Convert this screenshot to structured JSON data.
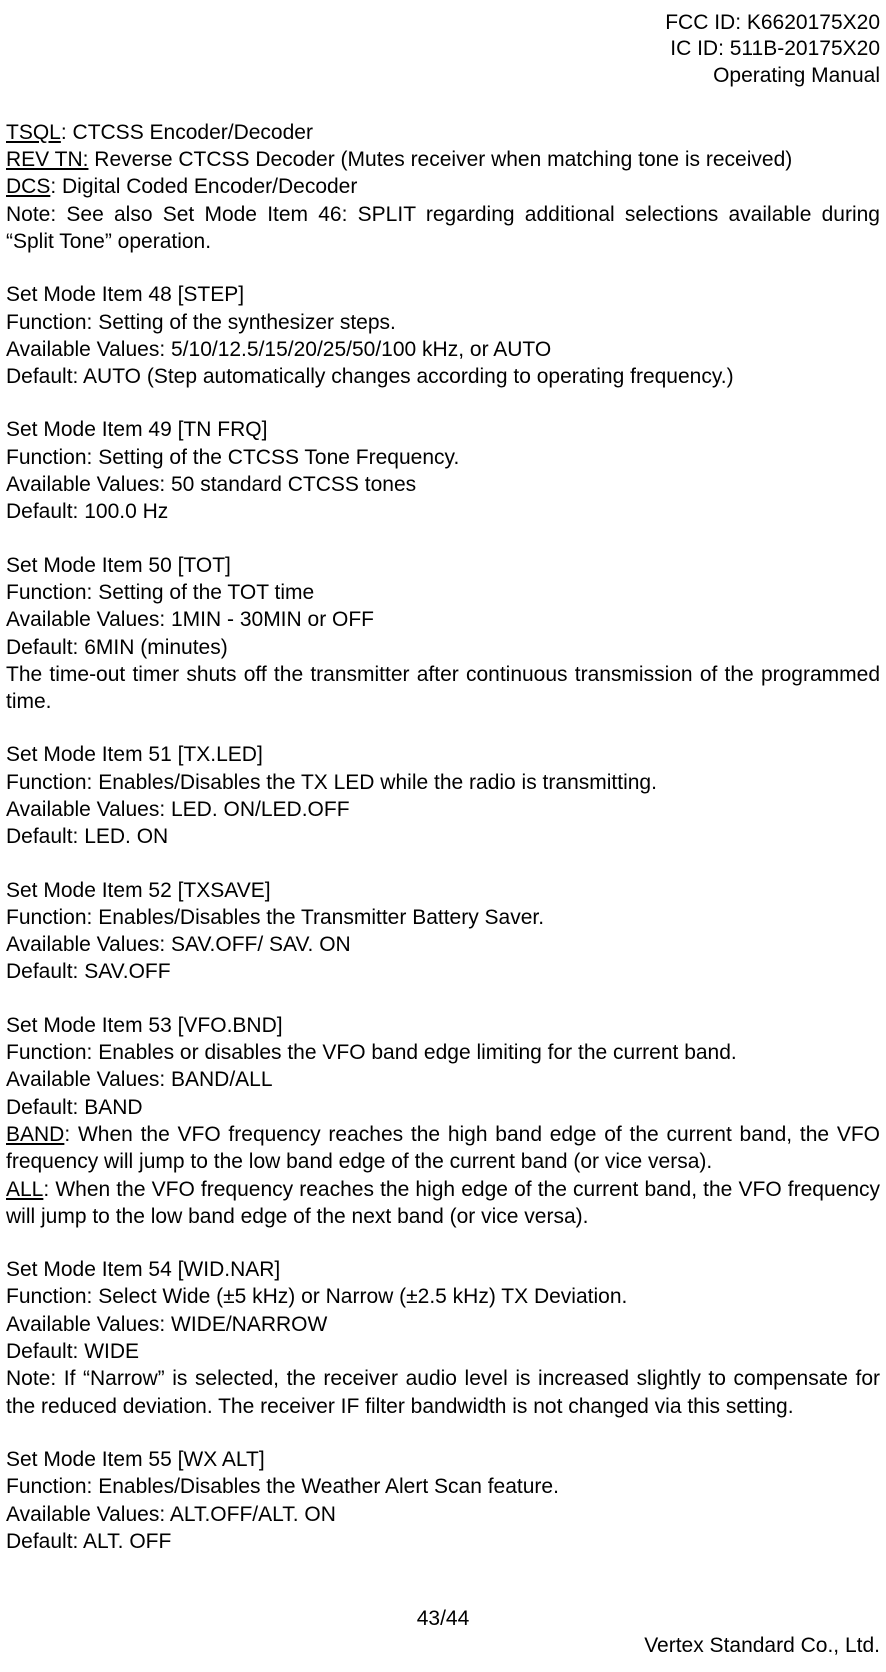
{
  "header": {
    "fcc": "FCC ID: K6620175X20",
    "ic": "IC ID: 511B-20175X20",
    "title": "Operating Manual"
  },
  "intro": {
    "tsql_label": "TSQL",
    "tsql_text": ": CTCSS Encoder/Decoder",
    "rev_label": "REV TN:",
    "rev_text": " Reverse CTCSS Decoder (Mutes receiver when matching tone is received)",
    "dcs_label": "DCS",
    "dcs_text": ": Digital Coded Encoder/Decoder",
    "note": "Note: See also Set Mode Item 46: SPLIT regarding additional selections available during “Split Tone” operation."
  },
  "item48": {
    "title": "Set Mode Item 48 [STEP]",
    "fn": "Function: Setting of the synthesizer steps.",
    "avail": "Available Values: 5/10/12.5/15/20/25/50/100 kHz, or AUTO",
    "def": "Default: AUTO (Step automatically changes according to operating frequency.)"
  },
  "item49": {
    "title": "Set Mode Item 49 [TN FRQ]",
    "fn": "Function: Setting of the CTCSS Tone Frequency.",
    "avail": "Available Values: 50 standard CTCSS tones",
    "def": "Default: 100.0 Hz"
  },
  "item50": {
    "title": "Set Mode Item 50 [TOT]",
    "fn": "Function: Setting of the TOT time",
    "avail": "Available Values: 1MIN - 30MIN or OFF",
    "def": "Default: 6MIN (minutes)",
    "extra": "The time-out timer shuts off the transmitter after continuous transmission of the programmed time."
  },
  "item51": {
    "title": "Set Mode Item 51 [TX.LED]",
    "fn": "Function: Enables/Disables the TX LED while the radio is transmitting.",
    "avail": "Available Values: LED. ON/LED.OFF",
    "def": "Default: LED. ON"
  },
  "item52": {
    "title": "Set Mode Item 52 [TXSAVE]",
    "fn": "Function: Enables/Disables the Transmitter Battery Saver.",
    "avail": "Available Values: SAV.OFF/ SAV. ON",
    "def": "Default: SAV.OFF"
  },
  "item53": {
    "title": "Set Mode Item 53 [VFO.BND]",
    "fn": "Function: Enables or disables the VFO band edge limiting for the current band.",
    "avail": "Available Values: BAND/ALL",
    "def": "Default: BAND",
    "band_label": "BAND",
    "band_text": ": When the VFO frequency reaches the high band edge of the current band, the VFO frequency will jump to the low band edge of the current band (or vice versa).",
    "all_label": "ALL",
    "all_text": ": When the VFO frequency reaches the high edge of the current band, the VFO frequency will jump to the low band edge of the next band (or vice versa)."
  },
  "item54": {
    "title": "Set Mode Item 54 [WID.NAR]",
    "fn": "Function: Select Wide (±5 kHz) or Narrow (±2.5 kHz) TX Deviation.",
    "avail": "Available Values: WIDE/NARROW",
    "def": "Default: WIDE",
    "note": "Note: If “Narrow” is selected, the receiver audio level is increased slightly to compensate for the reduced deviation. The receiver IF filter bandwidth is not changed via this setting."
  },
  "item55": {
    "title": "Set Mode Item 55 [WX ALT]",
    "fn": "Function: Enables/Disables the Weather Alert Scan feature.",
    "avail": "Available Values: ALT.OFF/ALT. ON",
    "def": "Default: ALT. OFF"
  },
  "footer": {
    "page": "43/44",
    "company": "Vertex Standard Co., Ltd."
  }
}
